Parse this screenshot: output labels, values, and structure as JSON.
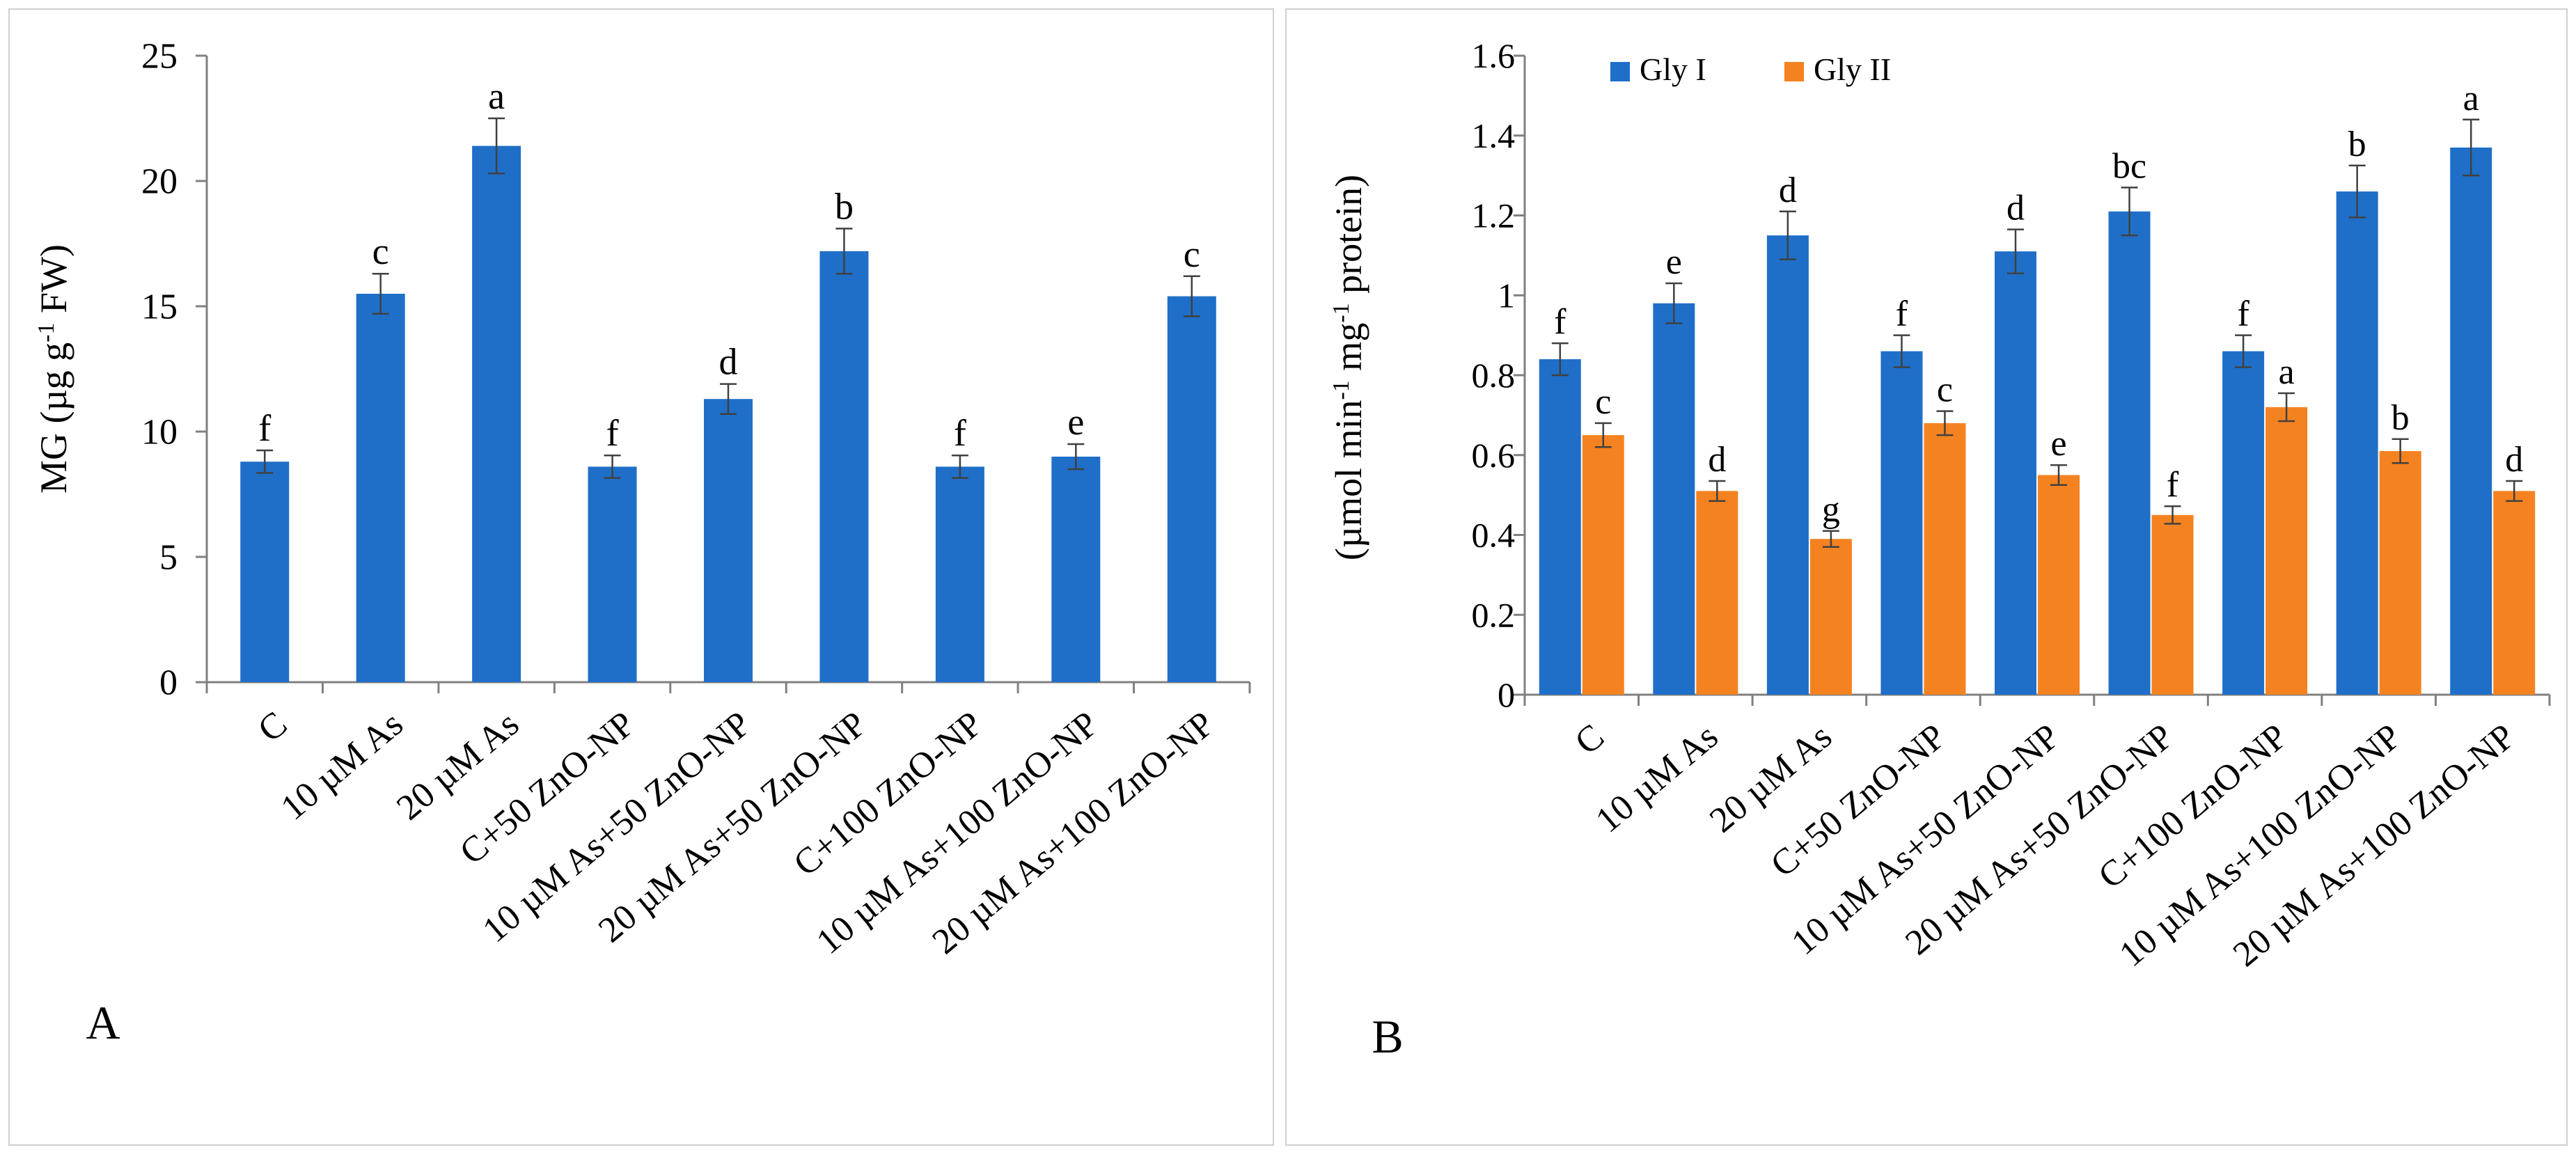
{
  "colors": {
    "gly1": "#1F6FC8",
    "gly2": "#F58220",
    "axis": "#808080",
    "error": "#404040"
  },
  "chart_data": [
    {
      "panel_label": "A",
      "type": "bar",
      "title": "",
      "xlabel": "",
      "ylabel_parts": [
        "MG (µg g",
        "-1",
        " FW)"
      ],
      "ylim": [
        0,
        25
      ],
      "yticks": [
        "0",
        "5",
        "10",
        "15",
        "20",
        "25"
      ],
      "grid": false,
      "categories": [
        "C",
        "10 µM As",
        "20 µM As",
        "C+50 ZnO-NP",
        "10 µM As+50 ZnO-NP",
        "20 µM As+50 ZnO-NP",
        "C+100 ZnO-NP",
        "10 µM As+100 ZnO-NP",
        "20 µM As+100 ZnO-NP"
      ],
      "series": [
        {
          "name": "MG",
          "values": [
            8.8,
            15.5,
            21.4,
            8.6,
            11.3,
            17.2,
            8.6,
            9.0,
            15.4
          ],
          "errors": [
            0.45,
            0.8,
            1.1,
            0.45,
            0.6,
            0.9,
            0.45,
            0.5,
            0.8
          ],
          "letters": [
            "f",
            "c",
            "a",
            "f",
            "d",
            "b",
            "f",
            "e",
            "c"
          ]
        }
      ]
    },
    {
      "panel_label": "B",
      "type": "bar",
      "title": "",
      "xlabel": "",
      "ylabel_parts": [
        "(µmol min",
        "-1",
        " mg",
        "-1",
        " protein)"
      ],
      "ylim": [
        0,
        1.6
      ],
      "yticks": [
        "0",
        "0.2",
        "0.4",
        "0.6",
        "0.8",
        "1",
        "1.2",
        "1.4",
        "1.6"
      ],
      "grid": false,
      "legend_position": "top-left",
      "categories": [
        "C",
        "10 µM As",
        "20 µM As",
        "C+50 ZnO-NP",
        "10 µM As+50 ZnO-NP",
        "20 µM As+50 ZnO-NP",
        "C+100 ZnO-NP",
        "10 µM As+100 ZnO-NP",
        "20 µM As+100 ZnO-NP"
      ],
      "series": [
        {
          "name": "Gly I",
          "values": [
            0.84,
            0.98,
            1.15,
            0.86,
            1.11,
            1.21,
            0.86,
            1.26,
            1.37
          ],
          "errors": [
            0.04,
            0.05,
            0.06,
            0.04,
            0.055,
            0.06,
            0.04,
            0.065,
            0.07
          ],
          "letters": [
            "f",
            "e",
            "d",
            "f",
            "d",
            "bc",
            "f",
            "b",
            "a"
          ]
        },
        {
          "name": "Gly II",
          "values": [
            0.65,
            0.51,
            0.39,
            0.68,
            0.55,
            0.45,
            0.72,
            0.61,
            0.51
          ],
          "errors": [
            0.03,
            0.025,
            0.02,
            0.03,
            0.025,
            0.022,
            0.035,
            0.03,
            0.025
          ],
          "letters": [
            "c",
            "d",
            "g",
            "c",
            "e",
            "f",
            "a",
            "b",
            "d"
          ]
        }
      ]
    }
  ]
}
